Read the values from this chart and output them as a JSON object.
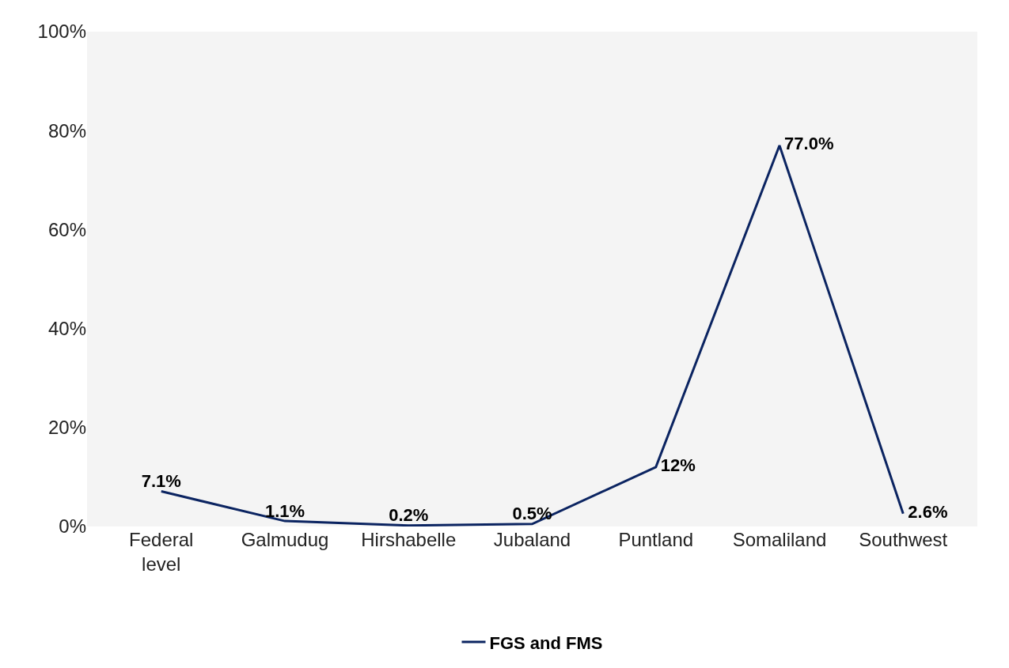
{
  "chart_data": {
    "type": "line",
    "categories": [
      "Federal level",
      "Galmudug",
      "Hirshabelle",
      "Jubaland",
      "Puntland",
      "Somaliland",
      "Southwest"
    ],
    "series": [
      {
        "name": "FGS and FMS",
        "color": "#0b2461",
        "values": [
          7.1,
          1.1,
          0.2,
          0.5,
          12,
          77.0,
          2.6
        ],
        "value_labels": [
          "7.1%",
          "1.1%",
          "0.2%",
          "0.5%",
          "12%",
          "77.0%",
          "2.6%"
        ]
      }
    ],
    "ylim": [
      0,
      100
    ],
    "yticks": [
      {
        "value": 0,
        "label": "0%"
      },
      {
        "value": 20,
        "label": "20%"
      },
      {
        "value": 40,
        "label": "40%"
      },
      {
        "value": 60,
        "label": "60%"
      },
      {
        "value": 80,
        "label": "80%"
      },
      {
        "value": 100,
        "label": "100%"
      }
    ],
    "grid": false,
    "legend": "bottom",
    "line_style": "solid"
  }
}
